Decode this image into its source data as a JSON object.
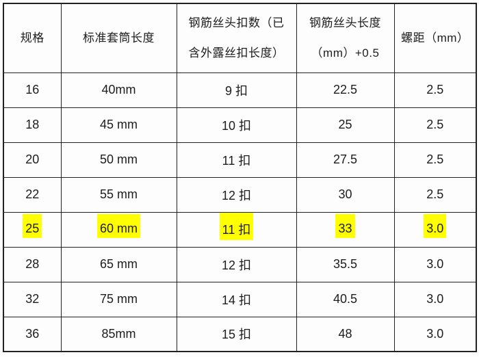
{
  "page": {
    "background_color": "#fdfdfd",
    "text_color": "#1c1c1c"
  },
  "table": {
    "border_color": "#212121",
    "highlight_color": "#ffff00",
    "headers": [
      {
        "id": "spec",
        "lines": [
          "规格"
        ]
      },
      {
        "id": "sleeve-length",
        "lines": [
          "标准套筒长度"
        ]
      },
      {
        "id": "thread-count",
        "lines": [
          "钢筋丝头扣数（已",
          "含外露丝扣长度）"
        ]
      },
      {
        "id": "thread-length",
        "lines": [
          "钢筋丝头长度",
          "（mm）+0.5"
        ]
      },
      {
        "id": "pitch",
        "lines": [
          "螺距（mm）"
        ]
      }
    ],
    "rows": [
      {
        "highlighted": false,
        "cells": [
          "16",
          "40mm",
          "9 扣",
          "22.5",
          "2.5"
        ]
      },
      {
        "highlighted": false,
        "cells": [
          "18",
          "45 mm",
          "10 扣",
          "25",
          "2.5"
        ]
      },
      {
        "highlighted": false,
        "cells": [
          "20",
          "50 mm",
          "11 扣",
          "27.5",
          "2.5"
        ]
      },
      {
        "highlighted": false,
        "cells": [
          "22",
          "55 mm",
          "12 扣",
          "30",
          "2.5"
        ]
      },
      {
        "highlighted": true,
        "cells": [
          "25",
          "60 mm",
          "11 扣",
          "33",
          "3.0"
        ]
      },
      {
        "highlighted": false,
        "cells": [
          "28",
          "65 mm",
          "12 扣",
          "35.5",
          "3.0"
        ]
      },
      {
        "highlighted": false,
        "cells": [
          "32",
          "75 mm",
          "14 扣",
          "40.5",
          "3.0"
        ]
      },
      {
        "highlighted": false,
        "cells": [
          "36",
          "85mm",
          "15 扣",
          "48",
          "3.0"
        ]
      }
    ]
  }
}
